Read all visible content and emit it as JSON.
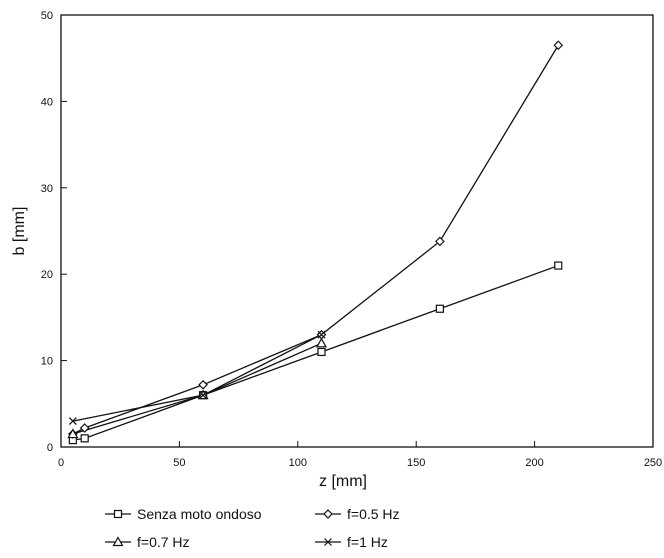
{
  "chart_data": {
    "type": "line",
    "title": "",
    "xlabel": "z [mm]",
    "ylabel": "b [mm]",
    "xlim": [
      0,
      250
    ],
    "ylim": [
      0,
      50
    ],
    "x_ticks": [
      "0",
      "50",
      "100",
      "150",
      "200",
      "250"
    ],
    "y_ticks": [
      "0",
      "10",
      "20",
      "30",
      "40",
      "50"
    ],
    "grid": false,
    "legend_position": "bottom",
    "series": [
      {
        "name": "Senza moto ondoso",
        "marker": "square",
        "x": [
          5,
          10,
          60,
          110,
          160,
          210
        ],
        "y": [
          0.8,
          1.0,
          6.0,
          11.0,
          16.0,
          21.0
        ]
      },
      {
        "name": "f=0.5 Hz",
        "marker": "diamond",
        "x": [
          5,
          10,
          60,
          110,
          160,
          210
        ],
        "y": [
          1.5,
          2.2,
          7.2,
          13.0,
          23.8,
          46.5
        ]
      },
      {
        "name": "f=0.7 Hz",
        "marker": "triangle",
        "x": [
          5,
          60,
          110
        ],
        "y": [
          1.5,
          6.0,
          12.0
        ]
      },
      {
        "name": "f=1 Hz",
        "marker": "x",
        "x": [
          5,
          60,
          110
        ],
        "y": [
          3.0,
          6.0,
          13.0
        ]
      }
    ]
  }
}
